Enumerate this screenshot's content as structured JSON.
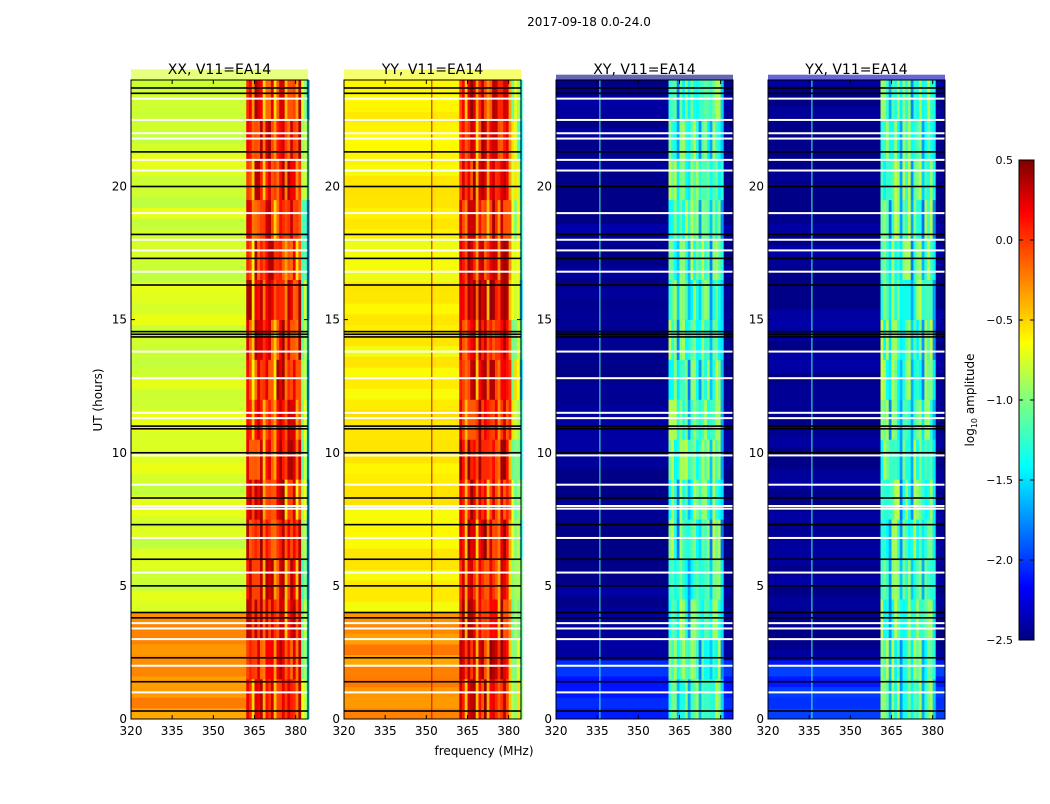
{
  "chart_data": {
    "type": "heatmap",
    "title": "2017-09-18 0.0-24.0",
    "xlabel": "frequency (MHz)",
    "ylabel": "UT (hours)",
    "xlim": [
      320,
      384.5
    ],
    "ylim": [
      0,
      24
    ],
    "xticks": [
      320,
      335,
      350,
      365,
      380
    ],
    "yticks": [
      0,
      5,
      10,
      15,
      20
    ],
    "colorbar": {
      "label_main": "log",
      "label_sub": "10",
      "label_rest": " amplitude",
      "colormap": "jet",
      "range": [
        -2.5,
        0.5
      ],
      "ticks": [
        0.5,
        0.0,
        -0.5,
        -1.0,
        -1.5,
        -2.0,
        -2.5
      ],
      "tick_labels": [
        "0.5",
        "0.0",
        "−0.5",
        "−1.0",
        "−1.5",
        "−2.0",
        "−2.5"
      ]
    },
    "flagged_white_hours": [
      23.3,
      22.5,
      22.0,
      21.8,
      21.0,
      20.6,
      19.0,
      18.0,
      17.6,
      16.8,
      13.8,
      12.8,
      11.5,
      11.3,
      9.9,
      8.8,
      8.0,
      7.9,
      6.8,
      5.5,
      3.6,
      3.4,
      3.0,
      2.0,
      1.0
    ],
    "flagged_black_hours": [
      23.7,
      23.5,
      21.3,
      20.0,
      18.2,
      17.3,
      16.3,
      14.55,
      14.45,
      14.35,
      11.0,
      10.9,
      10.0,
      8.3,
      7.3,
      6.0,
      5.0,
      4.0,
      3.8,
      2.3,
      1.4,
      0.3
    ],
    "panels": [
      {
        "title": "XX, V11=EA14",
        "background": [
          {
            "t": [
              0,
              4
            ],
            "value": -0.3
          },
          {
            "t": [
              4,
              24
            ],
            "value": -0.75
          }
        ],
        "bands": [
          {
            "f": [
              362,
              382
            ],
            "value": 0.1
          },
          {
            "f": [
              382,
              384.5
            ],
            "value": -0.9
          }
        ],
        "lines": []
      },
      {
        "title": "YY, V11=EA14",
        "background": [
          {
            "t": [
              0,
              4
            ],
            "value": -0.3
          },
          {
            "t": [
              4,
              24
            ],
            "value": -0.6
          }
        ],
        "bands": [
          {
            "f": [
              362,
              381
            ],
            "value": 0.15
          },
          {
            "f": [
              381,
              384.5
            ],
            "value": -0.8
          }
        ],
        "lines": [
          {
            "f": 352,
            "value": 0.2
          }
        ]
      },
      {
        "title": "XY, V11=EA14",
        "background": [
          {
            "t": [
              0,
              2.2
            ],
            "value": -2.0
          },
          {
            "t": [
              2.2,
              24
            ],
            "value": -2.45
          }
        ],
        "bands": [
          {
            "f": [
              361,
              381
            ],
            "value": -1.1
          }
        ],
        "lines": [
          {
            "f": 336,
            "value": -1.2
          }
        ]
      },
      {
        "title": "YX, V11=EA14",
        "background": [
          {
            "t": [
              0,
              2.2
            ],
            "value": -2.0
          },
          {
            "t": [
              2.2,
              24
            ],
            "value": -2.45
          }
        ],
        "bands": [
          {
            "f": [
              361,
              381
            ],
            "value": -1.1
          }
        ],
        "lines": [
          {
            "f": 336,
            "value": -1.2
          }
        ]
      }
    ]
  }
}
